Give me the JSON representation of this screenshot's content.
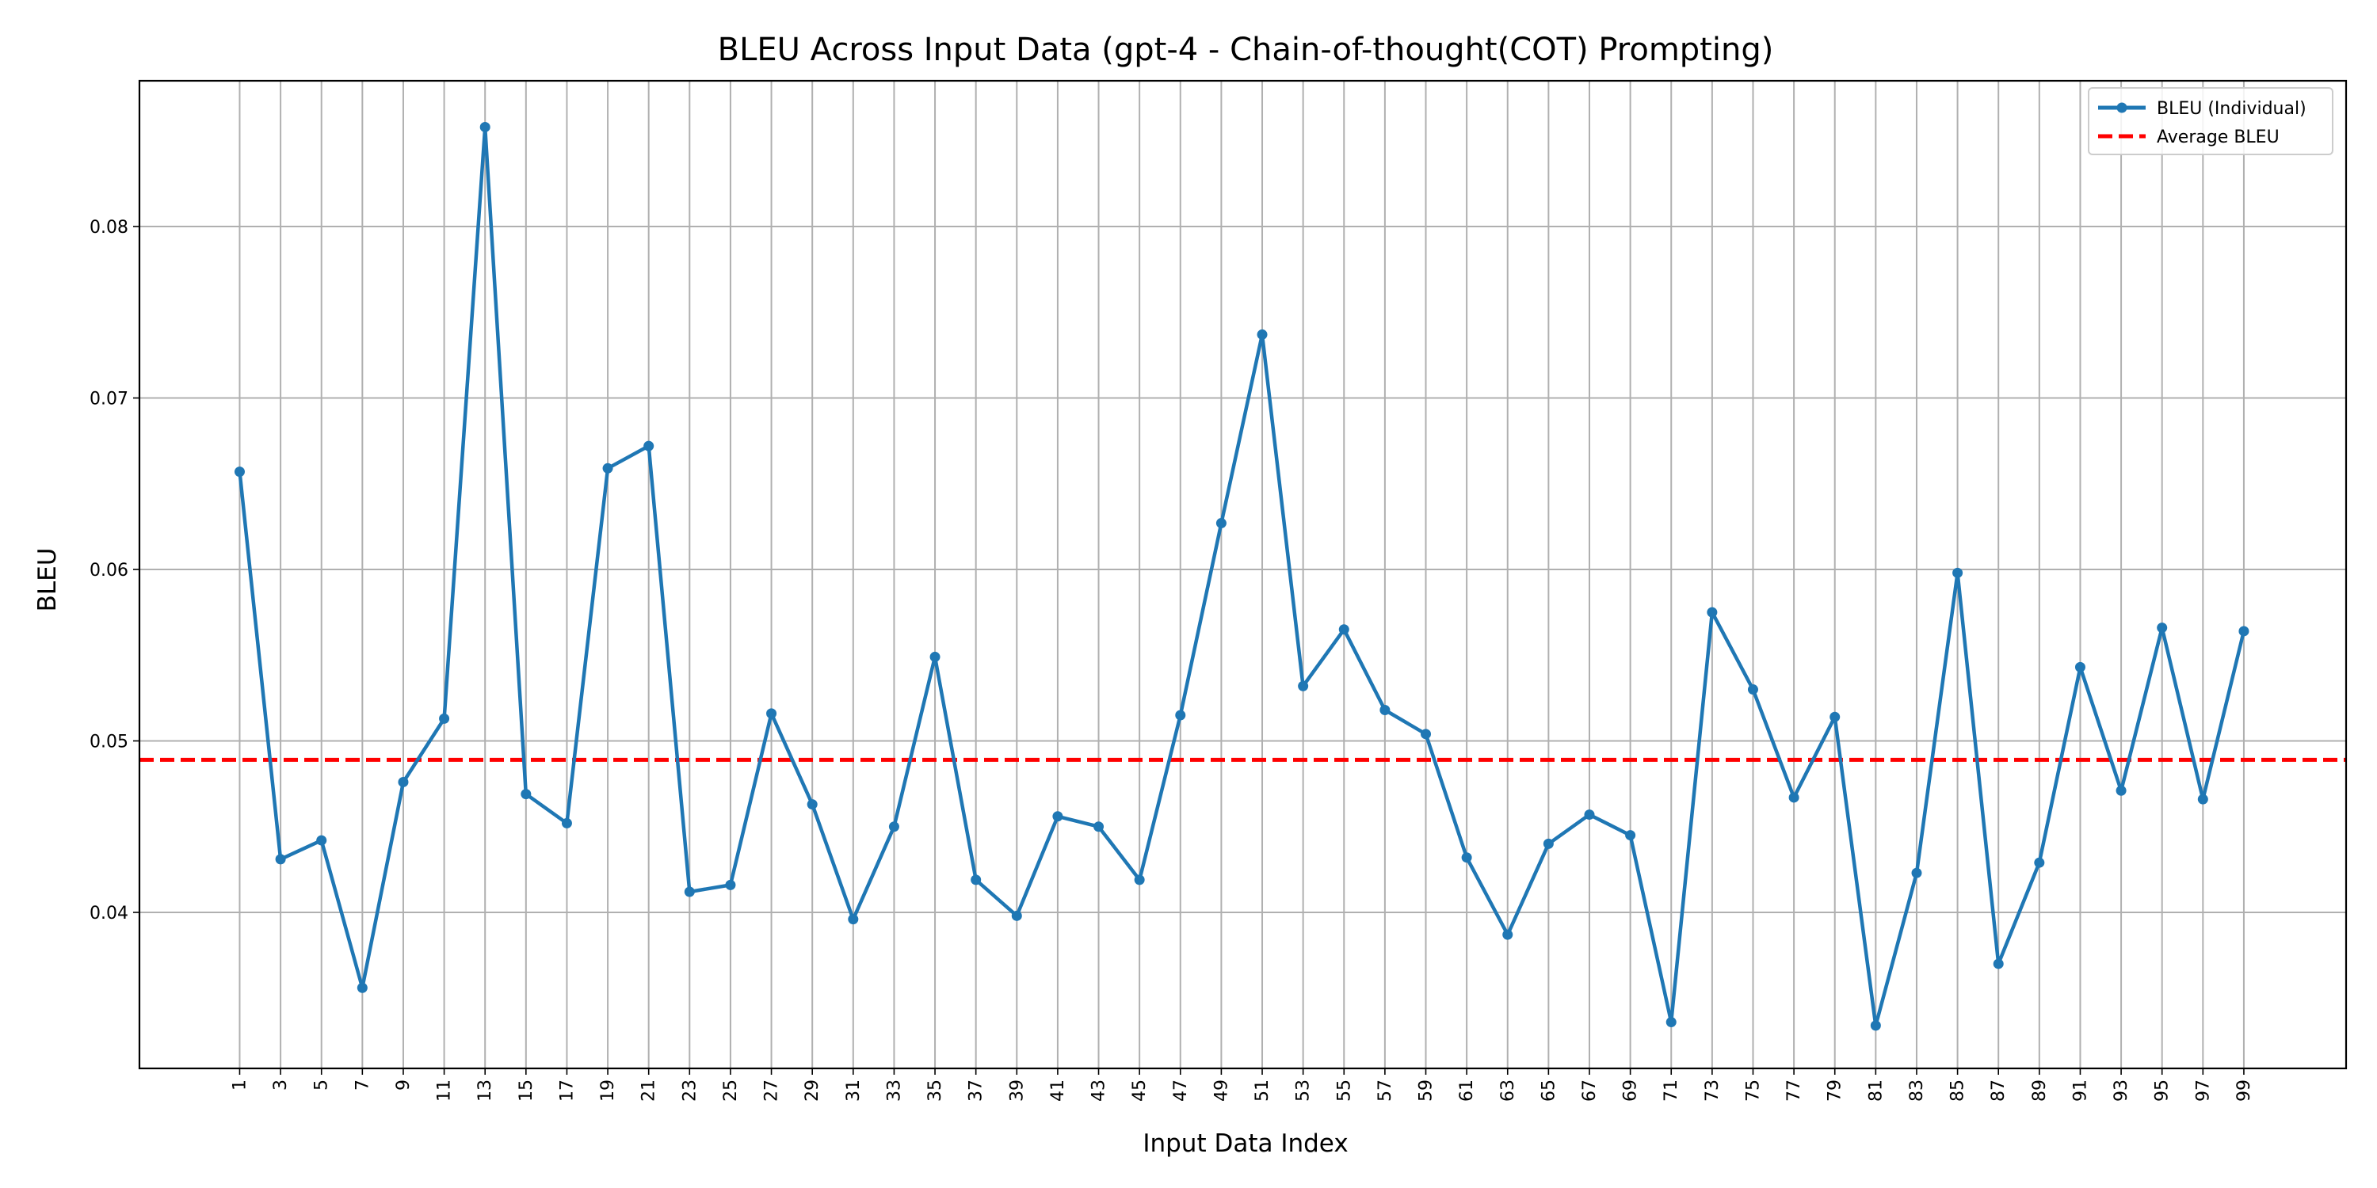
{
  "chart_data": {
    "type": "line",
    "title": "BLEU Across Input Data (gpt-4 - Chain-of-thought(COT) Prompting)",
    "xlabel": "Input Data Index",
    "ylabel": "BLEU",
    "x": [
      1,
      3,
      5,
      7,
      9,
      11,
      13,
      15,
      17,
      19,
      21,
      23,
      25,
      27,
      29,
      31,
      33,
      35,
      37,
      39,
      41,
      43,
      45,
      47,
      49,
      51,
      53,
      55,
      57,
      59,
      61,
      63,
      65,
      67,
      69,
      71,
      73,
      75,
      77,
      79,
      81,
      83,
      85,
      87,
      89,
      91,
      93,
      95,
      97,
      99
    ],
    "xticks": [
      "1",
      "3",
      "5",
      "7",
      "9",
      "11",
      "13",
      "15",
      "17",
      "19",
      "21",
      "23",
      "25",
      "27",
      "29",
      "31",
      "33",
      "35",
      "37",
      "39",
      "41",
      "43",
      "45",
      "47",
      "49",
      "51",
      "53",
      "55",
      "57",
      "59",
      "61",
      "63",
      "65",
      "67",
      "69",
      "71",
      "73",
      "75",
      "77",
      "79",
      "81",
      "83",
      "85",
      "87",
      "89",
      "91",
      "93",
      "95",
      "97",
      "99"
    ],
    "yticks": [
      "0.04",
      "0.05",
      "0.06",
      "0.07",
      "0.08"
    ],
    "xlim": [
      -3.9,
      104
    ],
    "ylim": [
      0.0309,
      0.0885
    ],
    "grid": true,
    "legend_position": "top-right",
    "series": [
      {
        "name": "BLEU (Individual)",
        "color": "#1f77b4",
        "style": "solid-line-with-markers",
        "values": [
          0.0657,
          0.0431,
          0.0442,
          0.0356,
          0.0476,
          0.0513,
          0.0858,
          0.0469,
          0.0452,
          0.0659,
          0.0672,
          0.0412,
          0.0416,
          0.0516,
          0.0463,
          0.0396,
          0.045,
          0.0549,
          0.0419,
          0.0398,
          0.0456,
          0.045,
          0.0419,
          0.0515,
          0.0627,
          0.0737,
          0.0532,
          0.0565,
          0.0518,
          0.0504,
          0.0432,
          0.0387,
          0.044,
          0.0457,
          0.0445,
          0.0336,
          0.0575,
          0.053,
          0.0467,
          0.0514,
          0.0334,
          0.0423,
          0.0598,
          0.037,
          0.0429,
          0.0543,
          0.0471,
          0.0566,
          0.0466,
          0.0564
        ]
      },
      {
        "name": "Average BLEU",
        "color": "#ff0000",
        "style": "dashed-line",
        "value": 0.0489
      }
    ]
  }
}
